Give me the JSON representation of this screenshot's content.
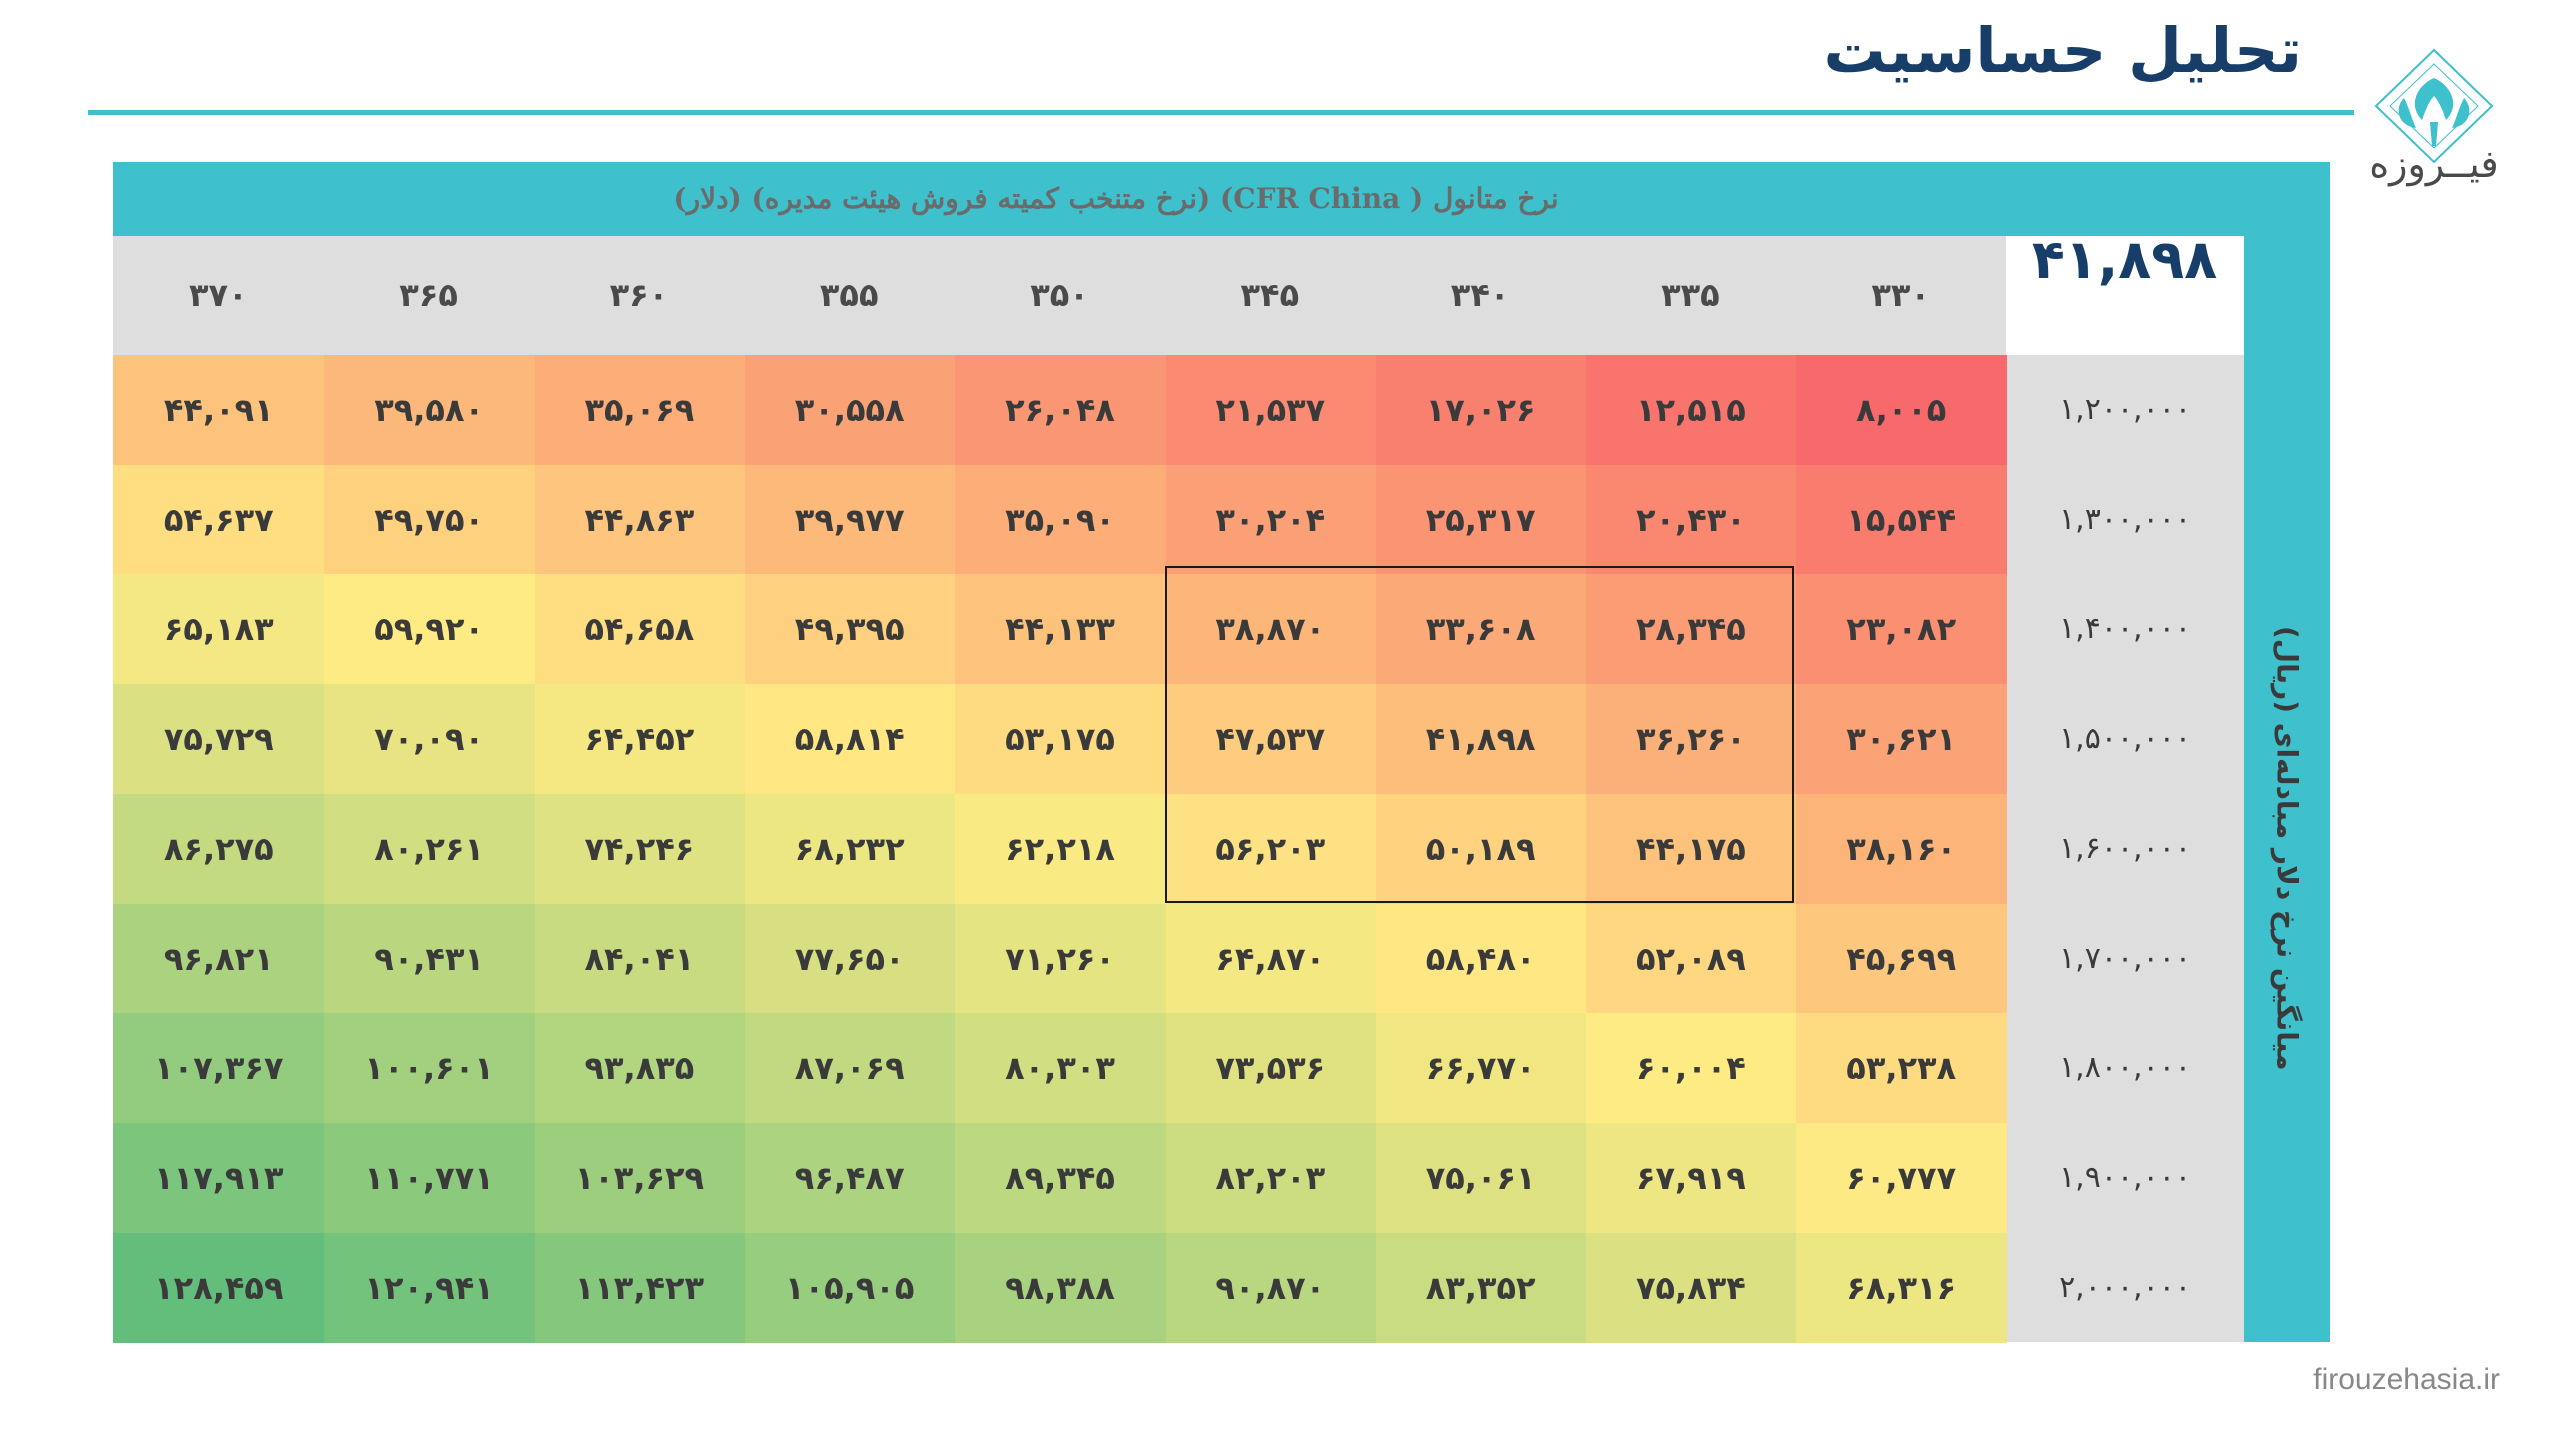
{
  "page": {
    "title": "تحلیل حساسیت",
    "logo_text": "فیــروزه",
    "website": "firouzehasia.ir"
  },
  "table": {
    "column_header_label": "نرخ متانول ( CFR China) (نرخ متنخب کمیته فروش هیئت مدیره) (دلار)",
    "row_header_label": "میانگین نرخ دلار مبادله‌ای (ریال)",
    "base_value": "۴۱,۸۹۸",
    "columns": [
      "۳۳۰",
      "۳۳۵",
      "۳۴۰",
      "۳۴۵",
      "۳۵۰",
      "۳۵۵",
      "۳۶۰",
      "۳۶۵",
      "۳۷۰"
    ],
    "rows": [
      {
        "label": "۱,۲۰۰,۰۰۰",
        "values": [
          "۸,۰۰۵",
          "۱۲,۵۱۵",
          "۱۷,۰۲۶",
          "۲۱,۵۳۷",
          "۲۶,۰۴۸",
          "۳۰,۵۵۸",
          "۳۵,۰۶۹",
          "۳۹,۵۸۰",
          "۴۴,۰۹۱"
        ]
      },
      {
        "label": "۱,۳۰۰,۰۰۰",
        "values": [
          "۱۵,۵۴۴",
          "۲۰,۴۳۰",
          "۲۵,۳۱۷",
          "۳۰,۲۰۴",
          "۳۵,۰۹۰",
          "۳۹,۹۷۷",
          "۴۴,۸۶۳",
          "۴۹,۷۵۰",
          "۵۴,۶۳۷"
        ]
      },
      {
        "label": "۱,۴۰۰,۰۰۰",
        "values": [
          "۲۳,۰۸۲",
          "۲۸,۳۴۵",
          "۳۳,۶۰۸",
          "۳۸,۸۷۰",
          "۴۴,۱۳۳",
          "۴۹,۳۹۵",
          "۵۴,۶۵۸",
          "۵۹,۹۲۰",
          "۶۵,۱۸۳"
        ]
      },
      {
        "label": "۱,۵۰۰,۰۰۰",
        "values": [
          "۳۰,۶۲۱",
          "۳۶,۲۶۰",
          "۴۱,۸۹۸",
          "۴۷,۵۳۷",
          "۵۳,۱۷۵",
          "۵۸,۸۱۴",
          "۶۴,۴۵۲",
          "۷۰,۰۹۰",
          "۷۵,۷۲۹"
        ]
      },
      {
        "label": "۱,۶۰۰,۰۰۰",
        "values": [
          "۳۸,۱۶۰",
          "۴۴,۱۷۵",
          "۵۰,۱۸۹",
          "۵۶,۲۰۳",
          "۶۲,۲۱۸",
          "۶۸,۲۳۲",
          "۷۴,۲۴۶",
          "۸۰,۲۶۱",
          "۸۶,۲۷۵"
        ]
      },
      {
        "label": "۱,۷۰۰,۰۰۰",
        "values": [
          "۴۵,۶۹۹",
          "۵۲,۰۸۹",
          "۵۸,۴۸۰",
          "۶۴,۸۷۰",
          "۷۱,۲۶۰",
          "۷۷,۶۵۰",
          "۸۴,۰۴۱",
          "۹۰,۴۳۱",
          "۹۶,۸۲۱"
        ]
      },
      {
        "label": "۱,۸۰۰,۰۰۰",
        "values": [
          "۵۳,۲۳۸",
          "۶۰,۰۰۴",
          "۶۶,۷۷۰",
          "۷۳,۵۳۶",
          "۸۰,۳۰۳",
          "۸۷,۰۶۹",
          "۹۳,۸۳۵",
          "۱۰۰,۶۰۱",
          "۱۰۷,۳۶۷"
        ]
      },
      {
        "label": "۱,۹۰۰,۰۰۰",
        "values": [
          "۶۰,۷۷۷",
          "۶۷,۹۱۹",
          "۷۵,۰۶۱",
          "۸۲,۲۰۳",
          "۸۹,۳۴۵",
          "۹۶,۴۸۷",
          "۱۰۳,۶۲۹",
          "۱۱۰,۷۷۱",
          "۱۱۷,۹۱۳"
        ]
      },
      {
        "label": "۲,۰۰۰,۰۰۰",
        "values": [
          "۶۸,۳۱۶",
          "۷۵,۸۳۴",
          "۸۳,۳۵۲",
          "۹۰,۸۷۰",
          "۹۸,۳۸۸",
          "۱۰۵,۹۰۵",
          "۱۱۳,۴۲۳",
          "۱۲۰,۹۴۱",
          "۱۲۸,۴۵۹"
        ]
      }
    ],
    "heat_colors": {
      "low": "#f8696b",
      "mid": "#ffeb84",
      "high": "#63be7b"
    },
    "frame_color": "#3ec0cd",
    "header_bg": "#dedede"
  }
}
